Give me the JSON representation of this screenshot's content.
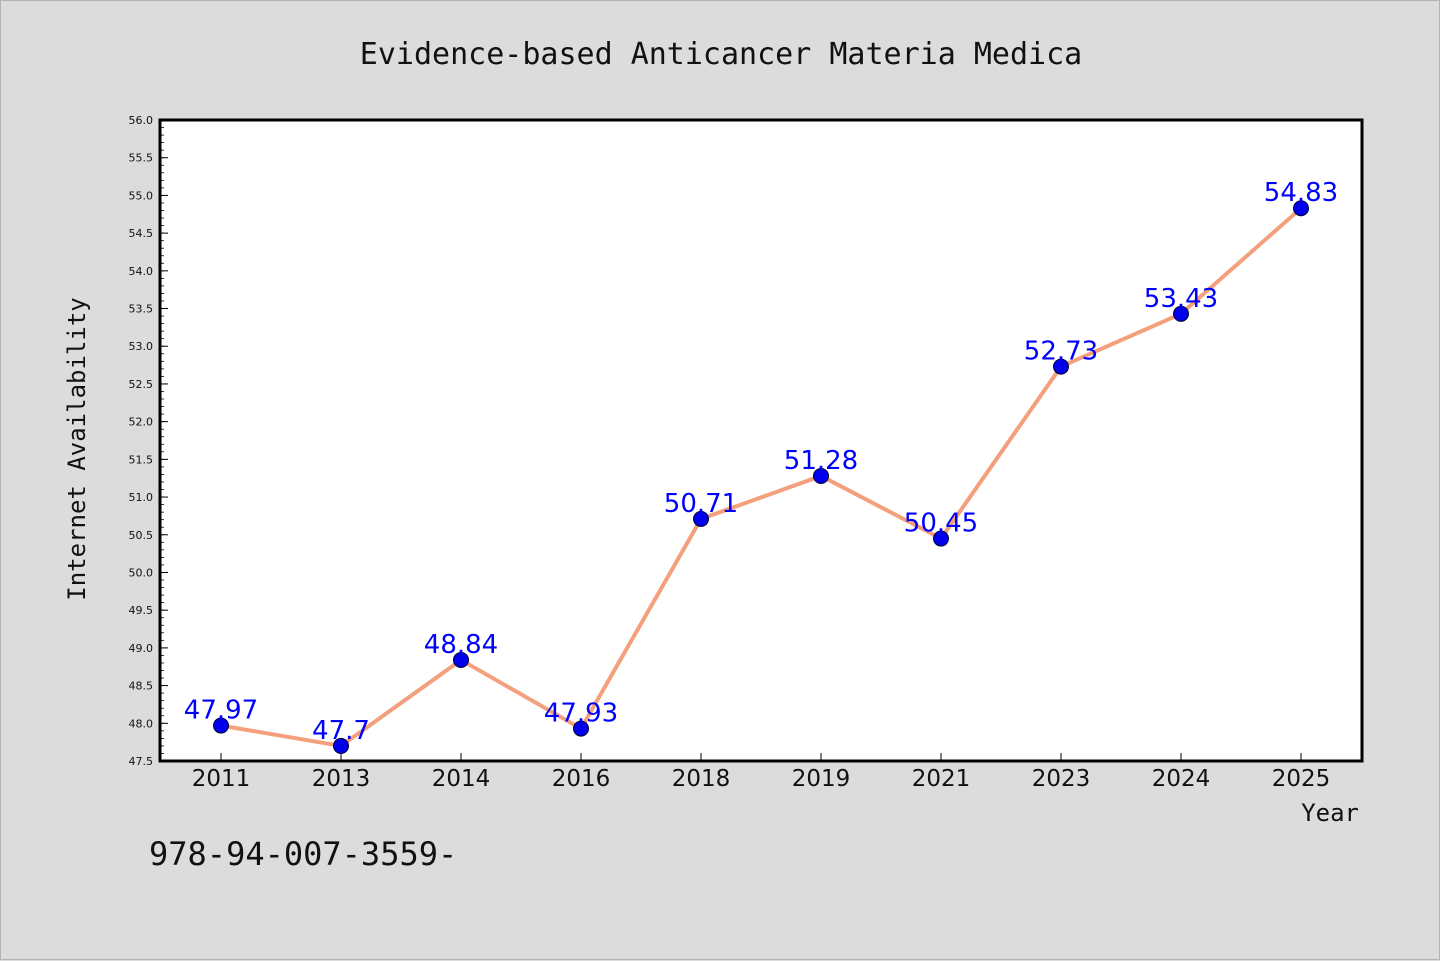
{
  "chart_data": {
    "type": "line",
    "title": "Evidence-based Anticancer Materia Medica",
    "xlabel": "Year",
    "ylabel": "Internet Availability",
    "categories": [
      "2011",
      "2013",
      "2014",
      "2016",
      "2018",
      "2019",
      "2021",
      "2023",
      "2024",
      "2025"
    ],
    "series": [
      {
        "values": [
          47.97,
          47.7,
          48.84,
          47.93,
          50.71,
          51.28,
          50.45,
          52.73,
          53.43,
          54.83
        ],
        "data_labels": [
          "47.97",
          "47.7",
          "48.84",
          "47.93",
          "50.71",
          "51.28",
          "50.45",
          "52.73",
          "53.43",
          "54.83"
        ],
        "line_color": "#f4a07c",
        "marker_color": "#0000ee",
        "label_color": "#0000ff"
      }
    ],
    "ylim": [
      47.5,
      56.0
    ],
    "yticks": [
      "47.5",
      "48.0",
      "48.5",
      "49.0",
      "49.5",
      "50.0",
      "50.5",
      "51.0",
      "51.5",
      "52.0",
      "52.5",
      "53.0",
      "53.5",
      "54.0",
      "54.5",
      "55.0",
      "55.5",
      "56.0"
    ],
    "grid": false,
    "legend": "none",
    "plot_background": "#ffffff",
    "figure_background": "#dcdcdc"
  },
  "footer": {
    "text": "978-94-007-3559-"
  }
}
